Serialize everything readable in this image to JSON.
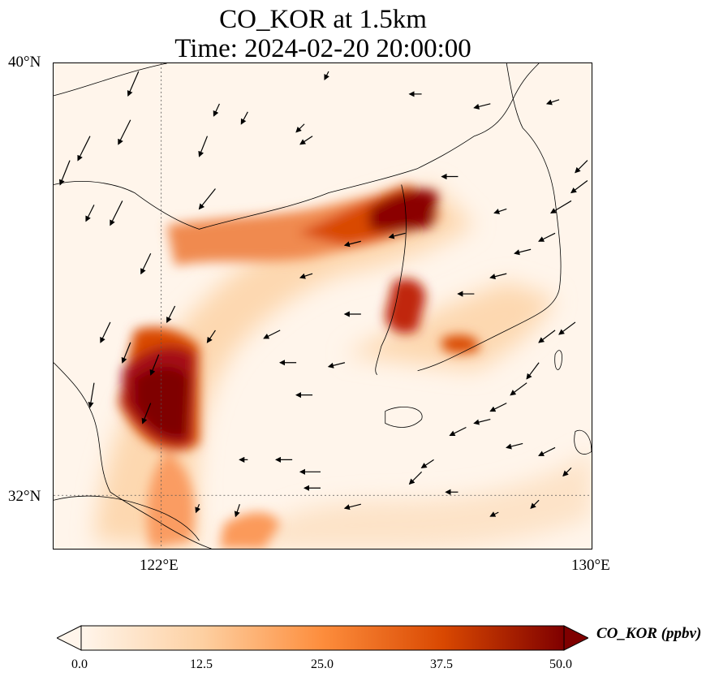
{
  "title": {
    "line1": "CO_KOR at 1.5km",
    "line2": "Time: 2024-02-20 20:00:00"
  },
  "map": {
    "lat_labels": [
      "40°N",
      "32°N"
    ],
    "lon_labels": [
      "122°E",
      "130°E"
    ],
    "extent": {
      "lon_min": 120,
      "lon_max": 130,
      "lat_min": 31,
      "lat_max": 40
    },
    "gridlines": {
      "lon": [
        122
      ],
      "lat": [
        32
      ],
      "style": "dotted"
    }
  },
  "colorbar": {
    "label": "CO_KOR (ppbv)",
    "ticks": [
      "0.0",
      "12.5",
      "25.0",
      "37.5",
      "50.0"
    ],
    "range": [
      0,
      50
    ],
    "extend": "both",
    "colormap": [
      "#fff5eb",
      "#fdd0a2",
      "#fd8d3c",
      "#d94801",
      "#7f0000"
    ]
  },
  "colors": {
    "coast": "#000000",
    "vectors": "#000000"
  }
}
